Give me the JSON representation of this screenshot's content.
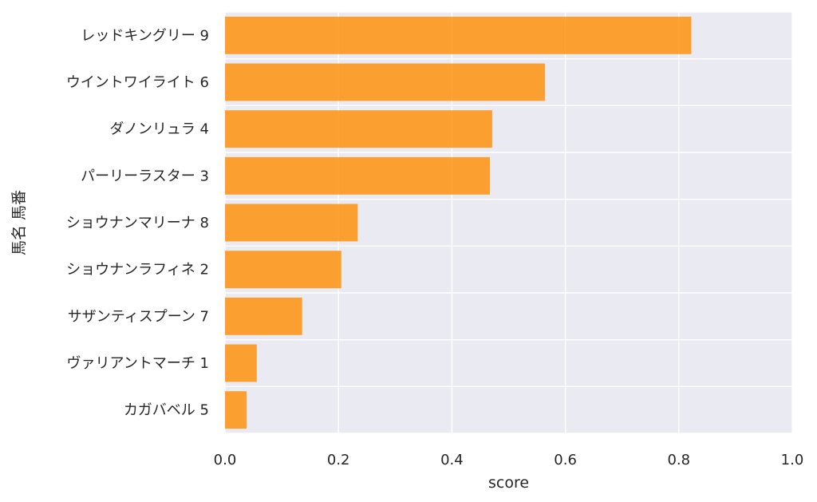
{
  "chart_data": {
    "type": "bar",
    "orientation": "horizontal",
    "categories": [
      "レッドキングリー 9",
      "ウイントワイライト 6",
      "ダノンリュラ 4",
      "パーリーラスター 3",
      "ショウナンマリーナ 8",
      "ショウナンラフィネ 2",
      "サザンティスプーン 7",
      "ヴァリアントマーチ 1",
      "カガバベル 5"
    ],
    "values": [
      0.822,
      0.564,
      0.471,
      0.467,
      0.234,
      0.205,
      0.136,
      0.056,
      0.038
    ],
    "xlabel": "score",
    "ylabel": "馬名 馬番",
    "xlim": [
      0,
      1.0
    ],
    "xticks": [
      "0.0",
      "0.2",
      "0.4",
      "0.6",
      "0.8",
      "1.0"
    ],
    "grid": true,
    "bar_color": "#ff8c00",
    "background_color": "#eaeaf2"
  }
}
